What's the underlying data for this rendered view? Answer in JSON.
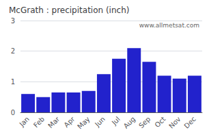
{
  "chart_data": {
    "type": "bar",
    "title": "McGrath : precipitation (inch)",
    "categories": [
      "Jan",
      "Feb",
      "Mar",
      "Apr",
      "May",
      "Jun",
      "Jul",
      "Aug",
      "Sep",
      "Oct",
      "Nov",
      "Dec"
    ],
    "values": [
      0.6,
      0.5,
      0.65,
      0.65,
      0.7,
      1.25,
      1.75,
      2.1,
      1.65,
      1.2,
      1.1,
      1.2
    ],
    "color": "#2222CC",
    "ylim": [
      0,
      3
    ],
    "yticks": [
      0,
      1,
      2,
      3
    ],
    "grid": true,
    "annotation": "www.allmetsat.com"
  }
}
